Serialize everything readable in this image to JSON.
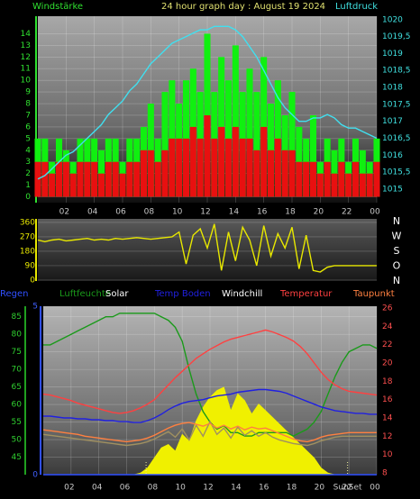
{
  "chart_data": [
    {
      "type": "bar",
      "title": "24 hour graph day : August 19 2024",
      "ylabel": "Windstärke",
      "y2label": "Luftdruck",
      "x": [
        0,
        0.5,
        1,
        1.5,
        2,
        2.5,
        3,
        3.5,
        4,
        4.5,
        5,
        5.5,
        6,
        6.5,
        7,
        7.5,
        8,
        8.5,
        9,
        9.5,
        10,
        10.5,
        11,
        11.5,
        12,
        12.5,
        13,
        13.5,
        14,
        14.5,
        15,
        15.5,
        16,
        16.5,
        17,
        17.5,
        18,
        18.5,
        19,
        19.5,
        20,
        20.5,
        21,
        21.5,
        22,
        22.5,
        23,
        23.5,
        24
      ],
      "xlim": [
        0,
        24
      ],
      "xticks": [
        {
          "value": 2,
          "label": "02"
        },
        {
          "value": 4,
          "label": "04"
        },
        {
          "value": 6,
          "label": "06"
        },
        {
          "value": 8,
          "label": "08"
        },
        10,
        12,
        14,
        16,
        18,
        20,
        22,
        {
          "value": 24,
          "label": "00"
        }
      ],
      "ylim": [
        -0.5,
        15.5
      ],
      "yticks": [
        0,
        1,
        2,
        3,
        4,
        5,
        6,
        7,
        8,
        9,
        10,
        11,
        12,
        13,
        14
      ],
      "y2lim": [
        1014.6,
        1020.1
      ],
      "y2ticks": [
        1015,
        {
          "value": 1015.5,
          "label": "1015,5"
        },
        1016,
        {
          "value": 1016.5,
          "label": "1016,5"
        },
        1017,
        {
          "value": 1017.5,
          "label": "1017,5"
        },
        1018,
        {
          "value": 1018.5,
          "label": "1018,5"
        },
        1019,
        {
          "value": 1019.5,
          "label": "1019,5"
        },
        1020
      ],
      "grid": true,
      "series": [
        {
          "color": "#10f010",
          "values": [
            5,
            5,
            3,
            5,
            4,
            3,
            5,
            5,
            5,
            4,
            5,
            5,
            3,
            5,
            5,
            6,
            8,
            5,
            9,
            10,
            8,
            10,
            11,
            9,
            14,
            9,
            12,
            10,
            13,
            9,
            11,
            9,
            12,
            8,
            10,
            7,
            9,
            6,
            5,
            7,
            3,
            5,
            4,
            5,
            3,
            5,
            4,
            3,
            5
          ]
        },
        {
          "color": "#e81010",
          "values": [
            3,
            3,
            2,
            3,
            3,
            2,
            3,
            3,
            3,
            2,
            3,
            3,
            2,
            3,
            3,
            4,
            4,
            3,
            4,
            5,
            5,
            5,
            6,
            5,
            7,
            5,
            6,
            5,
            6,
            5,
            5,
            4,
            6,
            4,
            5,
            4,
            4,
            3,
            3,
            3,
            2,
            3,
            2,
            3,
            2,
            3,
            2,
            2,
            3
          ]
        },
        {
          "type": "line",
          "axis": "y2",
          "color": "#40e0f0",
          "values": [
            1015.3,
            1015.4,
            1015.6,
            1015.8,
            1016.0,
            1016.1,
            1016.3,
            1016.5,
            1016.7,
            1016.9,
            1017.2,
            1017.4,
            1017.6,
            1017.9,
            1018.1,
            1018.4,
            1018.7,
            1018.9,
            1019.1,
            1019.3,
            1019.4,
            1019.5,
            1019.6,
            1019.7,
            1019.7,
            1019.8,
            1019.8,
            1019.8,
            1019.7,
            1019.5,
            1019.2,
            1018.9,
            1018.5,
            1018.1,
            1017.7,
            1017.4,
            1017.2,
            1017.0,
            1017.0,
            1017.1,
            1017.1,
            1017.2,
            1017.1,
            1016.9,
            1016.8,
            1016.8,
            1016.7,
            1016.6,
            1016.5
          ]
        }
      ]
    },
    {
      "type": "line",
      "x": [
        0,
        0.5,
        1,
        1.5,
        2,
        2.5,
        3,
        3.5,
        4,
        4.5,
        5,
        5.5,
        6,
        6.5,
        7,
        7.5,
        8,
        8.5,
        9,
        9.5,
        10,
        10.5,
        11,
        11.5,
        12,
        12.5,
        13,
        13.5,
        14,
        14.5,
        15,
        15.5,
        16,
        16.5,
        17,
        17.5,
        18,
        18.5,
        19,
        19.5,
        20,
        20.5,
        21,
        21.5,
        22,
        22.5,
        23,
        23.5,
        24
      ],
      "xlim": [
        0,
        24
      ],
      "ylim": [
        -6,
        382
      ],
      "yticks": [
        0,
        90,
        180,
        270,
        360
      ],
      "grid": true,
      "compass": [
        "N",
        "W",
        "S",
        "O",
        "N"
      ],
      "series": [
        {
          "color": "#e8e800",
          "values": [
            250,
            240,
            250,
            255,
            245,
            250,
            255,
            260,
            250,
            255,
            250,
            260,
            255,
            260,
            265,
            260,
            255,
            260,
            265,
            270,
            300,
            100,
            280,
            320,
            200,
            350,
            60,
            300,
            120,
            330,
            250,
            90,
            340,
            150,
            290,
            200,
            330,
            70,
            280,
            60,
            50,
            80,
            90,
            90,
            90,
            90,
            90,
            90,
            90
          ]
        }
      ]
    },
    {
      "type": "line",
      "x": [
        0,
        0.5,
        1,
        1.5,
        2,
        2.5,
        3,
        3.5,
        4,
        4.5,
        5,
        5.5,
        6,
        6.5,
        7,
        7.5,
        8,
        8.5,
        9,
        9.5,
        10,
        10.5,
        11,
        11.5,
        12,
        12.5,
        13,
        13.5,
        14,
        14.5,
        15,
        15.5,
        16,
        16.5,
        17,
        17.5,
        18,
        18.5,
        19,
        19.5,
        20,
        20.5,
        21,
        21.5,
        22,
        22.5,
        23,
        23.5,
        24
      ],
      "xlim": [
        0,
        24
      ],
      "xticks": [
        {
          "value": 2,
          "label": "02"
        },
        {
          "value": 4,
          "label": "04"
        },
        {
          "value": 6,
          "label": "06"
        },
        {
          "value": 8,
          "label": "08"
        },
        10,
        12,
        14,
        16,
        18,
        20,
        22,
        {
          "value": 24,
          "label": "00"
        }
      ],
      "ylim": [
        40,
        88
      ],
      "yticks": [
        45,
        50,
        55,
        60,
        65,
        70,
        75,
        80,
        85
      ],
      "y2lim": [
        7.8,
        26.2
      ],
      "y2ticks": [
        8,
        10,
        12,
        14,
        16,
        18,
        20,
        22,
        24,
        26
      ],
      "y3lim": [
        0,
        5
      ],
      "y3ticks": [
        0,
        5
      ],
      "grid": true,
      "sunrise": 7.4,
      "sunset": {
        "x": 21.9,
        "label": "SunSet"
      },
      "series": [
        {
          "name": "Regen",
          "axis": "y3",
          "color": "#3050ff",
          "values": [
            0,
            0,
            0,
            0,
            0,
            0,
            0,
            0,
            0,
            0,
            0,
            0,
            0,
            0,
            0,
            0,
            0,
            0,
            0,
            0,
            0,
            0,
            0,
            0,
            0,
            0,
            0,
            0,
            0,
            0,
            0,
            0,
            0,
            0,
            0,
            0,
            0,
            0,
            0,
            0,
            0,
            0,
            0,
            0,
            0,
            0,
            0,
            0,
            0
          ]
        },
        {
          "name": "Luftfeuchte",
          "axis": "y",
          "color": "#1a9a1a",
          "values": [
            77,
            77,
            78,
            79,
            80,
            81,
            82,
            83,
            84,
            85,
            85,
            86,
            86,
            86,
            86,
            86,
            86,
            85,
            84,
            82,
            78,
            70,
            63,
            58,
            55,
            53,
            54,
            52,
            52,
            51,
            51,
            52,
            52,
            52,
            52,
            52,
            51,
            52,
            53,
            55,
            58,
            63,
            68,
            72,
            75,
            76,
            77,
            77,
            76
          ]
        },
        {
          "name": "Solar",
          "axis": "y3",
          "area": true,
          "color": "#f0f000",
          "values": [
            0,
            0,
            0,
            0,
            0,
            0,
            0,
            0,
            0,
            0,
            0,
            0,
            0,
            0,
            0.05,
            0.2,
            0.5,
            0.8,
            0.9,
            0.7,
            1.2,
            1.0,
            1.6,
            2.0,
            2.3,
            2.5,
            2.6,
            1.9,
            2.4,
            2.2,
            1.8,
            2.1,
            1.9,
            1.7,
            1.5,
            1.3,
            1.1,
            0.9,
            0.7,
            0.5,
            0.2,
            0.05,
            0,
            0,
            0,
            0,
            0,
            0,
            0
          ]
        },
        {
          "name": "Temp Boden",
          "axis": "y2",
          "color": "#2020e0",
          "values": [
            14.2,
            14.2,
            14.1,
            14.0,
            14.0,
            13.9,
            13.9,
            13.8,
            13.8,
            13.7,
            13.7,
            13.6,
            13.6,
            13.5,
            13.5,
            13.7,
            14.0,
            14.4,
            14.9,
            15.3,
            15.6,
            15.8,
            15.9,
            16.0,
            16.2,
            16.4,
            16.5,
            16.6,
            16.8,
            16.9,
            17.0,
            17.1,
            17.1,
            17.0,
            16.9,
            16.7,
            16.4,
            16.1,
            15.8,
            15.5,
            15.2,
            15.0,
            14.8,
            14.7,
            14.6,
            14.5,
            14.5,
            14.4,
            14.4
          ]
        },
        {
          "name": "Windchill",
          "axis": "y2",
          "color": "#a09060",
          "values": [
            12.2,
            12.1,
            12.0,
            11.9,
            11.8,
            11.7,
            11.6,
            11.5,
            11.4,
            11.3,
            11.2,
            11.1,
            11.0,
            11.1,
            11.2,
            11.4,
            11.7,
            12.1,
            12.5,
            11.9,
            12.8,
            11.6,
            13.2,
            12.0,
            13.6,
            12.2,
            12.9,
            11.8,
            13.0,
            12.1,
            12.6,
            12.0,
            12.4,
            11.9,
            11.6,
            11.4,
            11.2,
            11.1,
            11.0,
            11.2,
            11.5,
            11.7,
            11.9,
            12.0,
            12.0,
            12.0,
            12.0,
            12.0,
            12.0
          ]
        },
        {
          "name": "Temperatur",
          "axis": "y2",
          "color": "#ff4040",
          "values": [
            16.6,
            16.5,
            16.3,
            16.1,
            15.9,
            15.6,
            15.4,
            15.2,
            15.0,
            14.8,
            14.6,
            14.5,
            14.6,
            14.8,
            15.1,
            15.5,
            16.0,
            16.8,
            17.6,
            18.4,
            19.1,
            19.8,
            20.5,
            21.0,
            21.5,
            21.9,
            22.3,
            22.6,
            22.8,
            23.0,
            23.2,
            23.4,
            23.6,
            23.4,
            23.1,
            22.8,
            22.4,
            21.8,
            21.0,
            20.0,
            19.0,
            18.2,
            17.6,
            17.2,
            16.9,
            16.8,
            16.7,
            16.6,
            16.5
          ]
        },
        {
          "name": "Taupunkt",
          "axis": "y2",
          "color": "#ff8040",
          "values": [
            12.7,
            12.6,
            12.5,
            12.4,
            12.3,
            12.2,
            12.0,
            11.9,
            11.8,
            11.7,
            11.6,
            11.5,
            11.4,
            11.5,
            11.6,
            11.8,
            12.1,
            12.5,
            12.9,
            13.2,
            13.4,
            13.5,
            13.3,
            13.1,
            13.4,
            12.9,
            13.2,
            12.8,
            13.1,
            12.7,
            13.0,
            12.8,
            12.9,
            12.6,
            12.3,
            12.0,
            11.7,
            11.5,
            11.4,
            11.6,
            11.9,
            12.1,
            12.2,
            12.3,
            12.4,
            12.4,
            12.4,
            12.4,
            12.4
          ]
        }
      ]
    }
  ]
}
